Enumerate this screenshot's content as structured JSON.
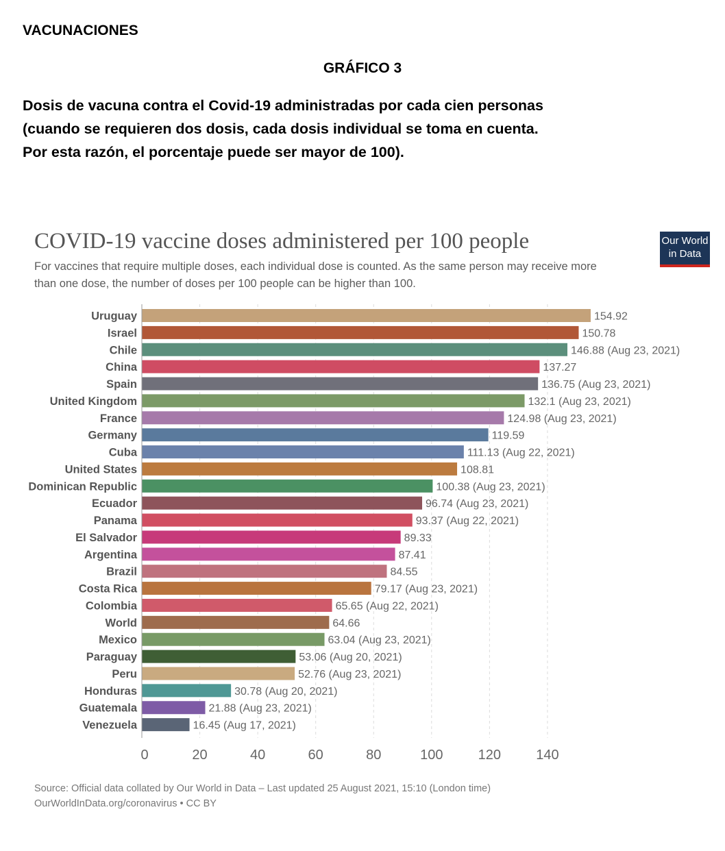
{
  "header": {
    "section": "VACUNACIONES",
    "figure_label": "GRÁFICO 3",
    "description_lines": [
      "Dosis de vacuna contra el Covid-19 administradas por cada cien personas",
      "(cuando se requieren dos dosis, cada dosis individual se toma en cuenta.",
      "Por esta razón, el porcentaje puede ser mayor de 100)."
    ]
  },
  "logo": {
    "line1": "Our World",
    "line2": "in Data",
    "color": "#1d3557",
    "accent": "#ce261e"
  },
  "chart_data": {
    "type": "bar",
    "orientation": "horizontal",
    "title": "COVID-19 vaccine doses administered per 100 people",
    "subtitle_lines": [
      "For vaccines that require multiple doses, each individual dose is counted. As the same person may receive more",
      "than one dose, the number of doses per 100 people can be higher than 100."
    ],
    "xlim": [
      0,
      155
    ],
    "xticks": [
      0,
      20,
      40,
      60,
      80,
      100,
      120,
      140
    ],
    "grid": "vertical dashed",
    "bars": [
      {
        "category": "Uruguay",
        "value": 154.92,
        "label": "154.92",
        "color": "#c4a27a"
      },
      {
        "category": "Israel",
        "value": 150.78,
        "label": "150.78",
        "color": "#b15737"
      },
      {
        "category": "Chile",
        "value": 146.88,
        "label": "146.88 (Aug 23, 2021)",
        "color": "#5c8f7c"
      },
      {
        "category": "China",
        "value": 137.27,
        "label": "137.27",
        "color": "#cf4c63"
      },
      {
        "category": "Spain",
        "value": 136.75,
        "label": "136.75 (Aug 23, 2021)",
        "color": "#70707a"
      },
      {
        "category": "United Kingdom",
        "value": 132.1,
        "label": "132.1 (Aug 23, 2021)",
        "color": "#7c9a67"
      },
      {
        "category": "France",
        "value": 124.98,
        "label": "124.98 (Aug 23, 2021)",
        "color": "#a67aaa"
      },
      {
        "category": "Germany",
        "value": 119.59,
        "label": "119.59",
        "color": "#5a7a9d"
      },
      {
        "category": "Cuba",
        "value": 111.13,
        "label": "111.13 (Aug 22, 2021)",
        "color": "#6b82ab"
      },
      {
        "category": "United States",
        "value": 108.81,
        "label": "108.81",
        "color": "#bc7b3f"
      },
      {
        "category": "Dominican Republic",
        "value": 100.38,
        "label": "100.38 (Aug 23, 2021)",
        "color": "#4b9163"
      },
      {
        "category": "Ecuador",
        "value": 96.74,
        "label": "96.74 (Aug 23, 2021)",
        "color": "#8e545b"
      },
      {
        "category": "Panama",
        "value": 93.37,
        "label": "93.37 (Aug 22, 2021)",
        "color": "#d14f62"
      },
      {
        "category": "El Salvador",
        "value": 89.33,
        "label": "89.33",
        "color": "#c73a7a"
      },
      {
        "category": "Argentina",
        "value": 87.41,
        "label": "87.41",
        "color": "#c4519c"
      },
      {
        "category": "Brazil",
        "value": 84.55,
        "label": "84.55",
        "color": "#bf727e"
      },
      {
        "category": "Costa Rica",
        "value": 79.17,
        "label": "79.17 (Aug 23, 2021)",
        "color": "#b9743e"
      },
      {
        "category": "Colombia",
        "value": 65.65,
        "label": "65.65 (Aug 22, 2021)",
        "color": "#d05a6a"
      },
      {
        "category": "World",
        "value": 64.66,
        "label": "64.66",
        "color": "#9e6c4d"
      },
      {
        "category": "Mexico",
        "value": 63.04,
        "label": "63.04 (Aug 23, 2021)",
        "color": "#789a66"
      },
      {
        "category": "Paraguay",
        "value": 53.06,
        "label": "53.06 (Aug 20, 2021)",
        "color": "#3f5e35"
      },
      {
        "category": "Peru",
        "value": 52.76,
        "label": "52.76 (Aug 23, 2021)",
        "color": "#c9aa80"
      },
      {
        "category": "Honduras",
        "value": 30.78,
        "label": "30.78 (Aug 20, 2021)",
        "color": "#4f9895"
      },
      {
        "category": "Guatemala",
        "value": 21.88,
        "label": "21.88 (Aug 23, 2021)",
        "color": "#7e5ba6"
      },
      {
        "category": "Venezuela",
        "value": 16.45,
        "label": "16.45 (Aug 17, 2021)",
        "color": "#5a6576"
      }
    ]
  },
  "source": {
    "line1": "Source: Official data collated by Our World in Data – Last updated 25 August 2021, 15:10 (London time)",
    "line2": "OurWorldInData.org/coronavirus • CC BY"
  }
}
